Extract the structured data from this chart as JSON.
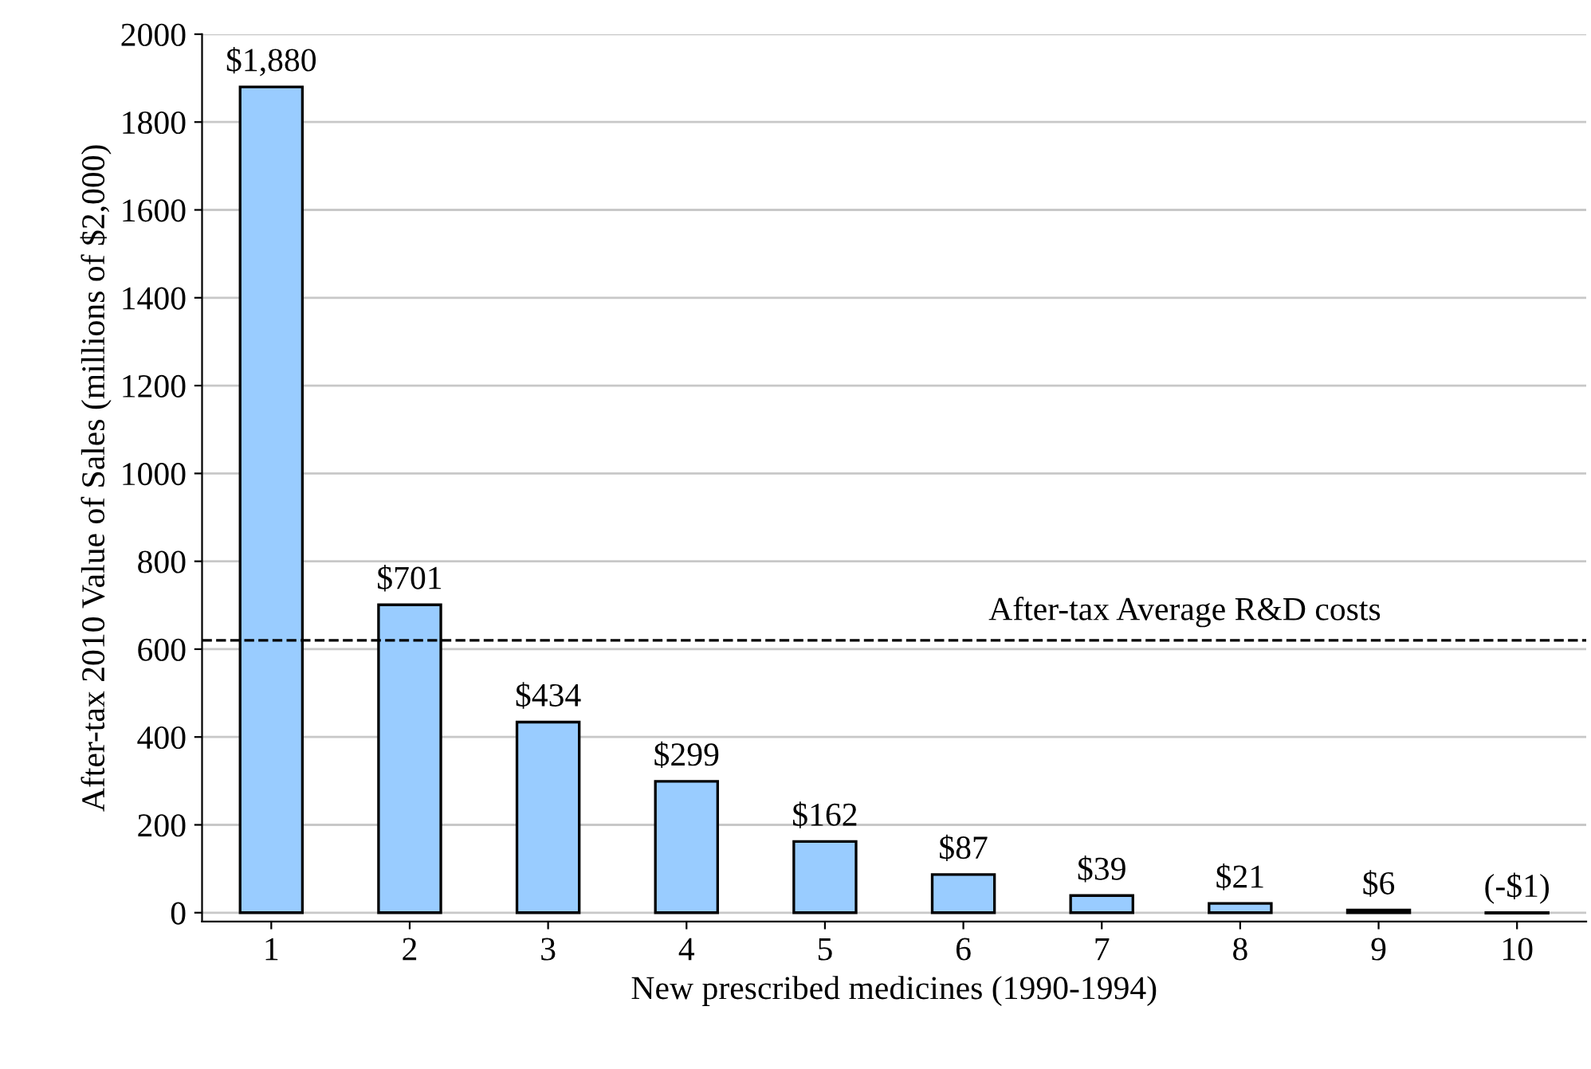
{
  "chart_data": {
    "type": "bar",
    "xlabel": "New prescribed medicines (1990-1994)",
    "ylabel": "After-tax 2010 Value of Sales (millions of $2,000)",
    "categories": [
      "1",
      "2",
      "3",
      "4",
      "5",
      "6",
      "7",
      "8",
      "9",
      "10"
    ],
    "values": [
      1880,
      701,
      434,
      299,
      162,
      87,
      39,
      21,
      6,
      -1
    ],
    "value_labels": [
      "$1,880",
      "$701",
      "$434",
      "$299",
      "$162",
      "$87",
      "$39",
      "$21",
      "$6",
      "(-$1)"
    ],
    "color": "#99ccff",
    "ylim": [
      -20,
      2000
    ],
    "yticks": [
      0,
      200,
      400,
      600,
      800,
      1000,
      1200,
      1400,
      1600,
      1800,
      2000
    ],
    "grid": "y",
    "ref_lines": [
      {
        "axis": "y",
        "value": 620,
        "label": "After-tax Average R&D costs",
        "color": "#000000",
        "line_style": "dashed"
      }
    ]
  }
}
